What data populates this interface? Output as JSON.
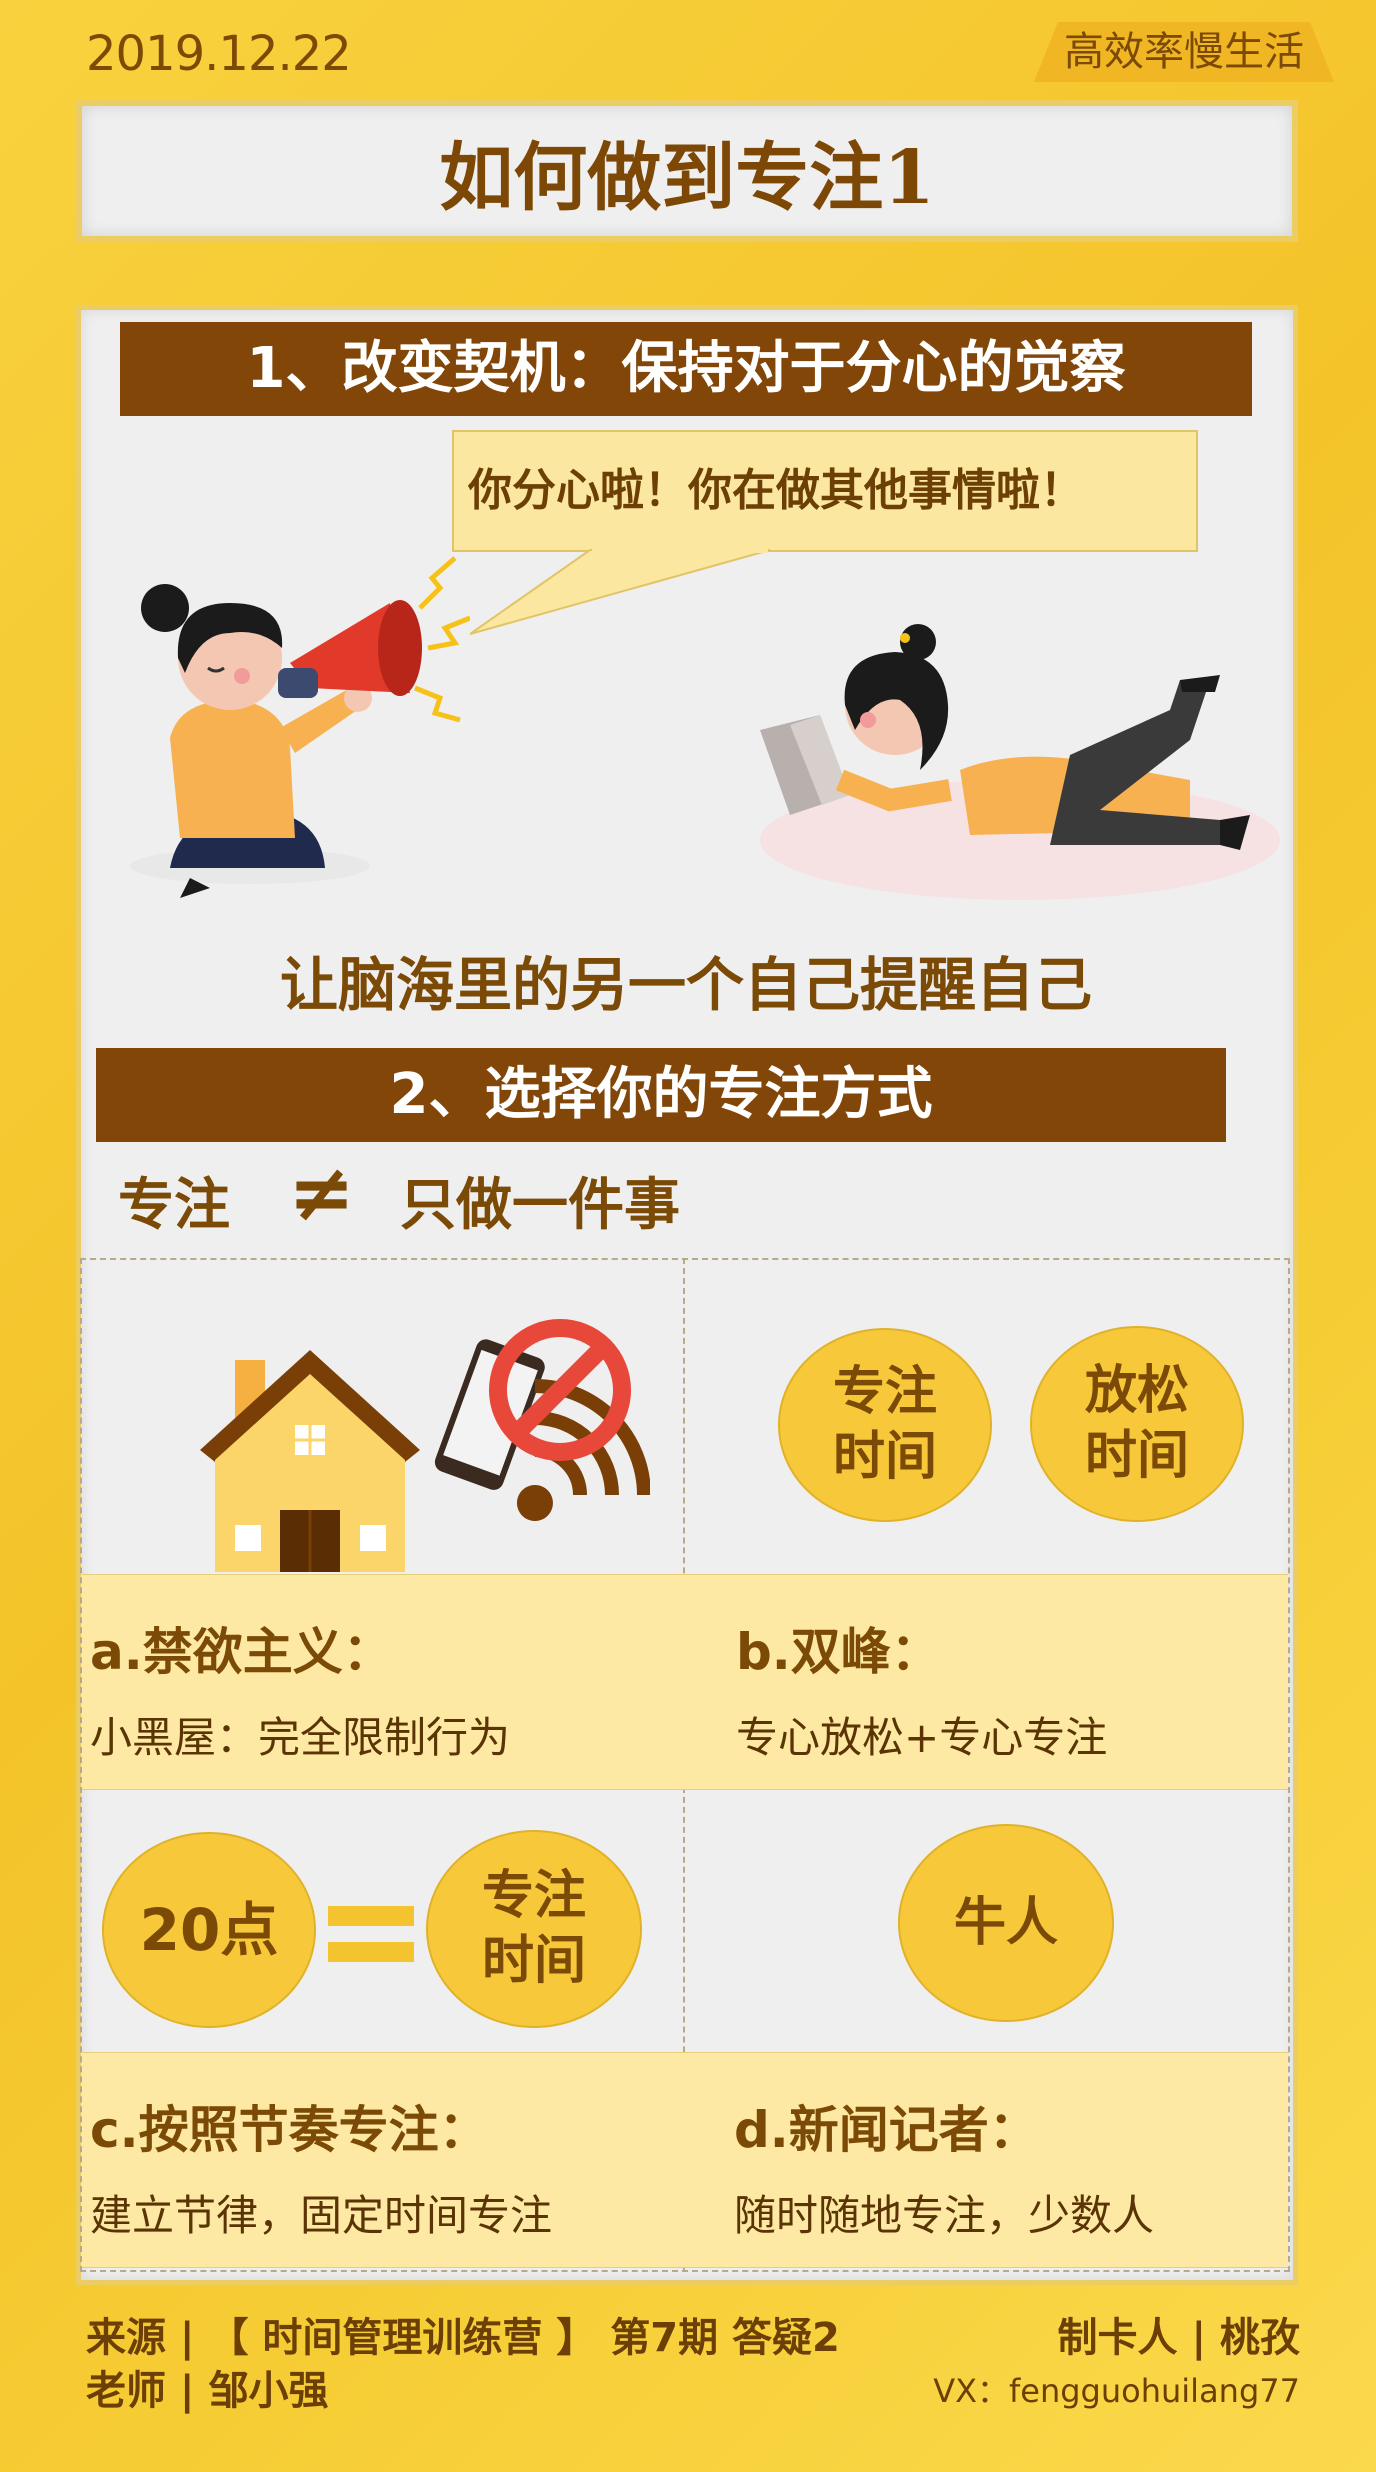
{
  "header": {
    "date": "2019.12.22",
    "tag": "高效率慢生活",
    "title": "如何做到专注1"
  },
  "section1": {
    "heading": "1、改变契机：保持对于分心的觉察",
    "speech": "你分心啦！你在做其他事情啦！",
    "caption": "让脑海里的另一个自己提醒自己"
  },
  "section2": {
    "heading": "2、选择你的专注方式",
    "left_word": "专注",
    "neq": "≠",
    "right_word": "只做一件事",
    "cells": [
      {
        "title": "a.禁欲主义：",
        "text": "小黑屋：完全限制行为"
      },
      {
        "title": "b.双峰：",
        "text": "专心放松+专心专注"
      },
      {
        "title": "c.按照节奏专注：",
        "text": "建立节律，固定时间专注"
      },
      {
        "title": "d.新闻记者：",
        "text": "随时随地专注，少数人"
      }
    ],
    "circles": {
      "focus_time": "专注\n时间",
      "relax_time": "放松\n时间",
      "twenty": "20点",
      "focus_time_2": "专注\n时间",
      "expert": "牛人"
    }
  },
  "footer": {
    "source": "来源 | 【 时间管理训练营 】 第7期  答疑2",
    "teacher": "老师 | 邹小强",
    "maker": "制卡人 | 桃孜",
    "vx": "VX：fengguohuilang77"
  },
  "colors": {
    "brown": "#824708",
    "gold": "#f7c93a",
    "pale_yellow": "#fde9a3",
    "background_yellow": "#f6cd35"
  }
}
